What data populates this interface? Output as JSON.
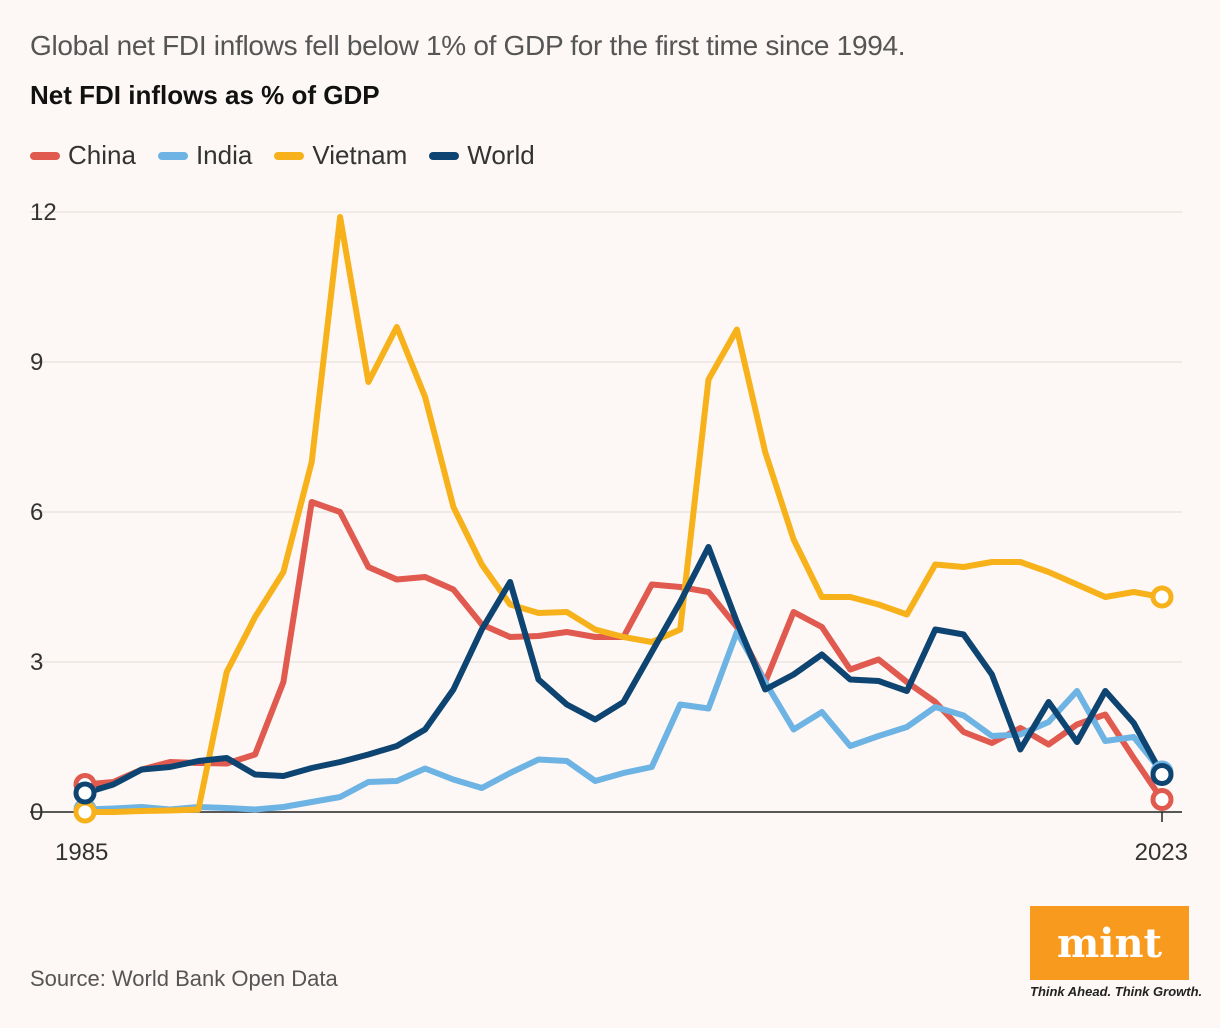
{
  "header": {
    "subtitle": "Global net FDI inflows fell below 1% of GDP for the first time since 1994.",
    "title": "Net FDI inflows as % of GDP"
  },
  "footer": {
    "source": "Source: World Bank Open Data",
    "logo_text": "mint",
    "tagline": "Think Ahead. Think Growth."
  },
  "chart_data": {
    "type": "line",
    "title": "Net FDI inflows as % of GDP",
    "xlabel": "",
    "ylabel": "",
    "x_start": 1985,
    "x_end": 2023,
    "x_tick_labels": [
      "1985",
      "2023"
    ],
    "y_ticks": [
      0,
      3,
      6,
      9,
      12
    ],
    "ylim": [
      0,
      12
    ],
    "grid": true,
    "legend_position": "top-left",
    "series": [
      {
        "name": "China",
        "color": "#e05a4f",
        "values": [
          0.55,
          0.6,
          0.85,
          1.0,
          0.98,
          0.97,
          1.15,
          2.6,
          6.2,
          6.0,
          4.9,
          4.65,
          4.7,
          4.45,
          3.75,
          3.5,
          3.52,
          3.6,
          3.5,
          3.5,
          4.55,
          4.5,
          4.4,
          3.7,
          2.6,
          4.0,
          3.7,
          2.85,
          3.05,
          2.6,
          2.2,
          1.6,
          1.38,
          1.68,
          1.35,
          1.75,
          1.95,
          1.08,
          0.25
        ]
      },
      {
        "name": "India",
        "color": "#6db3e3",
        "values": [
          0.05,
          0.07,
          0.1,
          0.05,
          0.1,
          0.08,
          0.05,
          0.1,
          0.2,
          0.3,
          0.6,
          0.62,
          0.87,
          0.65,
          0.48,
          0.78,
          1.05,
          1.02,
          0.62,
          0.78,
          0.9,
          2.15,
          2.07,
          3.6,
          2.6,
          1.65,
          2.0,
          1.32,
          1.52,
          1.7,
          2.1,
          1.93,
          1.52,
          1.55,
          1.8,
          2.42,
          1.42,
          1.5,
          0.8
        ]
      },
      {
        "name": "Vietnam",
        "color": "#f7b21b",
        "values": [
          0.0,
          0.0,
          0.02,
          0.03,
          0.05,
          2.8,
          3.9,
          4.8,
          7.0,
          11.9,
          8.6,
          9.7,
          8.3,
          6.1,
          4.95,
          4.15,
          3.98,
          4.0,
          3.65,
          3.5,
          3.4,
          3.65,
          8.65,
          9.65,
          7.2,
          5.45,
          4.3,
          4.3,
          4.15,
          3.95,
          4.95,
          4.9,
          5.0,
          5.0,
          4.8,
          4.55,
          4.3,
          4.4,
          4.3
        ]
      },
      {
        "name": "World",
        "color": "#0d4471",
        "values": [
          0.38,
          0.55,
          0.85,
          0.9,
          1.02,
          1.08,
          0.75,
          0.72,
          0.88,
          1.0,
          1.15,
          1.32,
          1.65,
          2.45,
          3.65,
          4.6,
          2.65,
          2.15,
          1.85,
          2.2,
          3.2,
          4.2,
          5.3,
          3.8,
          2.45,
          2.75,
          3.15,
          2.65,
          2.62,
          2.42,
          3.65,
          3.55,
          2.75,
          1.25,
          2.2,
          1.4,
          2.42,
          1.78,
          0.75
        ]
      }
    ]
  }
}
